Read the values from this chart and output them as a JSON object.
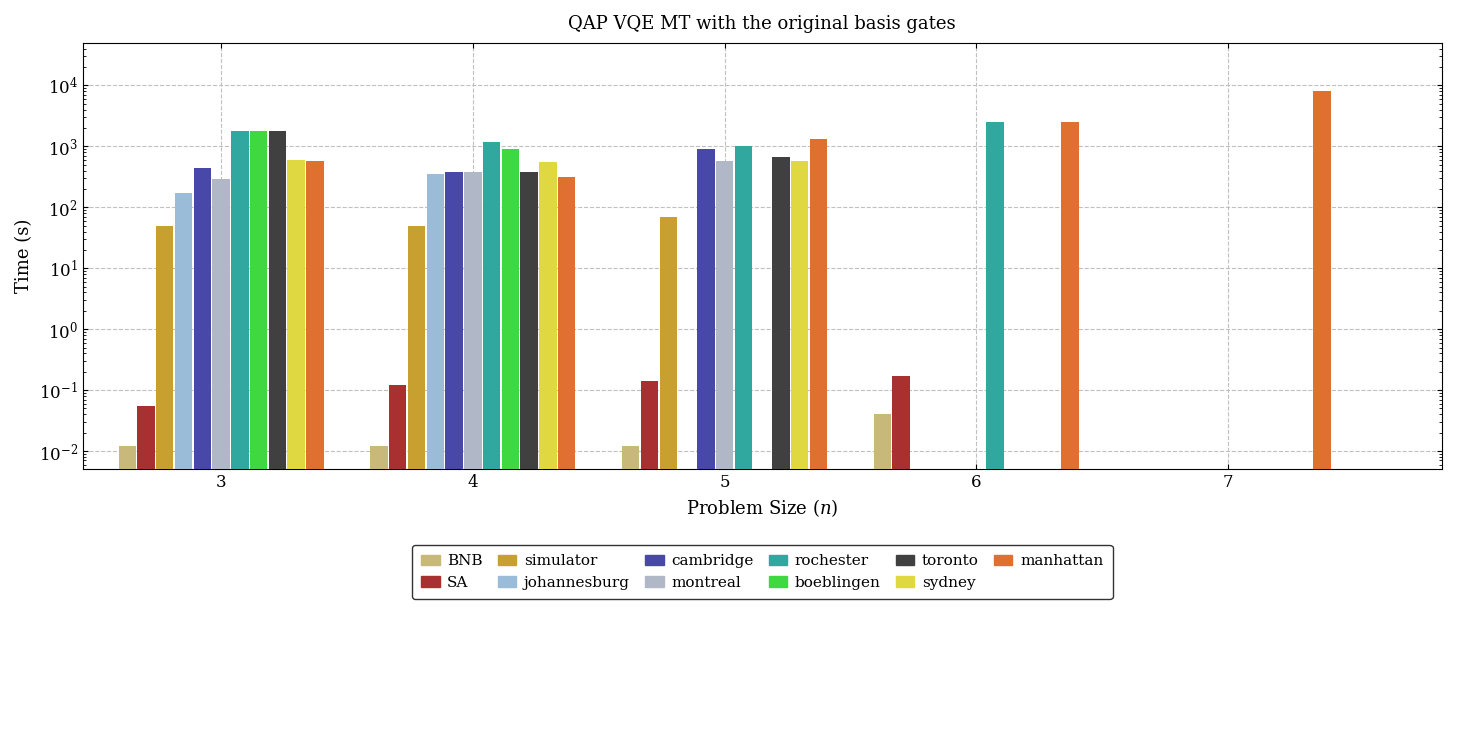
{
  "title": "QAP VQE MT with the original basis gates",
  "xlabel": "Problem Size $(n)$",
  "ylabel": "Time (s)",
  "series": [
    "BNB",
    "SA",
    "simulator",
    "johannesburg",
    "cambridge",
    "montreal",
    "rochester",
    "boeblingen",
    "toronto",
    "sydney",
    "manhattan"
  ],
  "colors": [
    "#c8b87a",
    "#a83030",
    "#c8a030",
    "#9abcd8",
    "#4848a8",
    "#b0b8c8",
    "#30a8a0",
    "#40d840",
    "#404040",
    "#e0d840",
    "#e07030"
  ],
  "problem_sizes": [
    3,
    4,
    5,
    6,
    7
  ],
  "data": {
    "BNB": [
      0.012,
      0.012,
      0.012,
      0.04,
      null
    ],
    "SA": [
      0.055,
      0.12,
      0.14,
      0.17,
      null
    ],
    "simulator": [
      50,
      50,
      70,
      null,
      null
    ],
    "johannesburg": [
      170,
      350,
      null,
      null,
      null
    ],
    "cambridge": [
      450,
      380,
      900,
      null,
      null
    ],
    "montreal": [
      290,
      380,
      580,
      null,
      null
    ],
    "rochester": [
      1800,
      1200,
      1000,
      2500,
      null
    ],
    "boeblingen": [
      1800,
      900,
      null,
      null,
      null
    ],
    "toronto": [
      1800,
      380,
      680,
      null,
      null
    ],
    "sydney": [
      600,
      550,
      580,
      null,
      null
    ],
    "manhattan": [
      580,
      310,
      1300,
      2500,
      8000
    ]
  },
  "ylim": [
    0.005,
    50000
  ],
  "xlim": [
    2.45,
    7.85
  ],
  "legend_order": [
    "BNB",
    "SA",
    "simulator",
    "johannesburg",
    "cambridge",
    "montreal",
    "rochester",
    "boeblingen",
    "toronto",
    "sydney",
    "manhattan"
  ],
  "legend_ncol": 6
}
